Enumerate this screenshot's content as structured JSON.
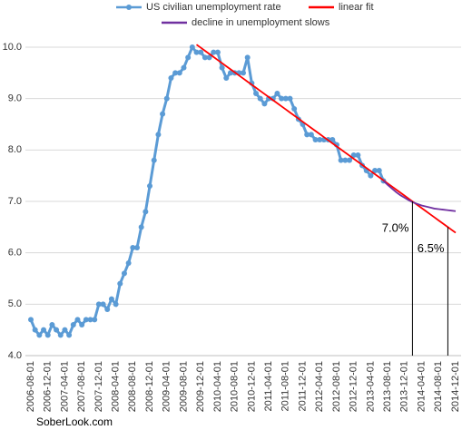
{
  "chart_data": {
    "type": "line",
    "categories": [
      "2006-08-01",
      null,
      null,
      null,
      "2006-12-01",
      null,
      null,
      null,
      "2007-04-01",
      null,
      null,
      null,
      "2007-08-01",
      null,
      null,
      null,
      "2007-12-01",
      null,
      null,
      null,
      "2008-04-01",
      null,
      null,
      null,
      "2008-08-01",
      null,
      null,
      null,
      "2008-12-01",
      null,
      null,
      null,
      "2009-04-01",
      null,
      null,
      null,
      "2009-08-01",
      null,
      null,
      null,
      "2009-12-01",
      null,
      null,
      null,
      "2010-04-01",
      null,
      null,
      null,
      "2010-08-01",
      null,
      null,
      null,
      "2010-12-01",
      null,
      null,
      null,
      "2011-04-01",
      null,
      null,
      null,
      "2011-08-01",
      null,
      null,
      null,
      "2011-12-01",
      null,
      null,
      null,
      "2012-04-01",
      null,
      null,
      null,
      "2012-08-01",
      null,
      null,
      null,
      "2012-12-01",
      null,
      null,
      null,
      "2013-04-01",
      null,
      null,
      null,
      "2013-08-01",
      null,
      null,
      null,
      "2013-12-01",
      null,
      null,
      null,
      "2014-04-01",
      null,
      null,
      null,
      "2014-08-01",
      null,
      null,
      null,
      "2014-12-01"
    ],
    "series": [
      {
        "name": "US civilian unemployment rate",
        "color": "#5b9bd5",
        "markers": true,
        "values": [
          4.7,
          4.5,
          4.4,
          4.5,
          4.4,
          4.6,
          4.5,
          4.4,
          4.5,
          4.4,
          4.6,
          4.7,
          4.6,
          4.7,
          4.7,
          4.7,
          5.0,
          5.0,
          4.9,
          5.1,
          5.0,
          5.4,
          5.6,
          5.8,
          6.1,
          6.1,
          6.5,
          6.8,
          7.3,
          7.8,
          8.3,
          8.7,
          9.0,
          9.4,
          9.5,
          9.5,
          9.6,
          9.8,
          10.0,
          9.9,
          9.9,
          9.8,
          9.8,
          9.9,
          9.9,
          9.6,
          9.4,
          9.5,
          9.5,
          9.5,
          9.5,
          9.8,
          9.3,
          9.1,
          9.0,
          8.9,
          9.0,
          9.0,
          9.1,
          9.0,
          9.0,
          9.0,
          8.8,
          8.6,
          8.5,
          8.3,
          8.3,
          8.2,
          8.2,
          8.2,
          8.2,
          8.2,
          8.1,
          7.8,
          7.8,
          7.8,
          7.9,
          7.9,
          7.7,
          7.6,
          7.5,
          7.6,
          7.6,
          7.4,
          null,
          null,
          null,
          null,
          null,
          null,
          null,
          null,
          null,
          null,
          null,
          null,
          null,
          null,
          null,
          null,
          null
        ]
      },
      {
        "name": "linear fit",
        "color": "#ff0000",
        "markers": false,
        "values": [
          null,
          null,
          null,
          null,
          null,
          null,
          null,
          null,
          null,
          null,
          null,
          null,
          null,
          null,
          null,
          null,
          null,
          null,
          null,
          null,
          null,
          null,
          null,
          null,
          null,
          null,
          null,
          null,
          null,
          null,
          null,
          null,
          null,
          null,
          null,
          null,
          null,
          null,
          null,
          10.05,
          9.99,
          9.93,
          9.87,
          9.81,
          9.75,
          9.69,
          9.63,
          9.57,
          9.51,
          9.45,
          9.39,
          9.33,
          9.27,
          9.21,
          9.15,
          9.09,
          9.03,
          8.97,
          8.91,
          8.85,
          8.79,
          8.73,
          8.67,
          8.61,
          8.55,
          8.49,
          8.43,
          8.37,
          8.31,
          8.25,
          8.19,
          8.13,
          8.07,
          8.01,
          7.95,
          7.89,
          7.83,
          7.77,
          7.71,
          7.65,
          7.59,
          7.53,
          7.47,
          7.41,
          7.35,
          7.29,
          7.23,
          7.17,
          7.11,
          7.05,
          6.99,
          6.93,
          6.87,
          6.81,
          6.75,
          6.69,
          6.63,
          6.57,
          6.51,
          6.45,
          6.39
        ]
      },
      {
        "name": "decline in unemployment slows",
        "color": "#7030a0",
        "markers": false,
        "values": [
          null,
          null,
          null,
          null,
          null,
          null,
          null,
          null,
          null,
          null,
          null,
          null,
          null,
          null,
          null,
          null,
          null,
          null,
          null,
          null,
          null,
          null,
          null,
          null,
          null,
          null,
          null,
          null,
          null,
          null,
          null,
          null,
          null,
          null,
          null,
          null,
          null,
          null,
          null,
          null,
          null,
          null,
          null,
          null,
          null,
          null,
          null,
          null,
          null,
          null,
          null,
          null,
          null,
          null,
          null,
          null,
          null,
          null,
          null,
          null,
          null,
          null,
          null,
          null,
          null,
          null,
          null,
          null,
          null,
          null,
          null,
          null,
          null,
          null,
          null,
          null,
          null,
          null,
          null,
          null,
          null,
          null,
          null,
          7.4,
          7.32,
          7.25,
          7.18,
          7.12,
          7.07,
          7.02,
          6.98,
          6.95,
          6.92,
          6.9,
          6.88,
          6.86,
          6.85,
          6.84,
          6.83,
          6.82,
          6.81
        ]
      }
    ],
    "ylim": [
      4,
      10
    ],
    "yticks": [
      {
        "value": 4,
        "label": "4.0"
      },
      {
        "value": 5,
        "label": "5.0"
      },
      {
        "value": 6,
        "label": "6.0"
      },
      {
        "value": 7,
        "label": "7.0"
      },
      {
        "value": 8,
        "label": "8.0"
      },
      {
        "value": 9,
        "label": "9.0"
      },
      {
        "value": 10,
        "label": "10.0"
      }
    ],
    "grid": true,
    "legend": "top",
    "annotations": [
      {
        "text": "7.0%",
        "value": 7.0
      },
      {
        "text": "6.5%",
        "value": 6.5
      }
    ],
    "source": "SoberLook.com"
  }
}
